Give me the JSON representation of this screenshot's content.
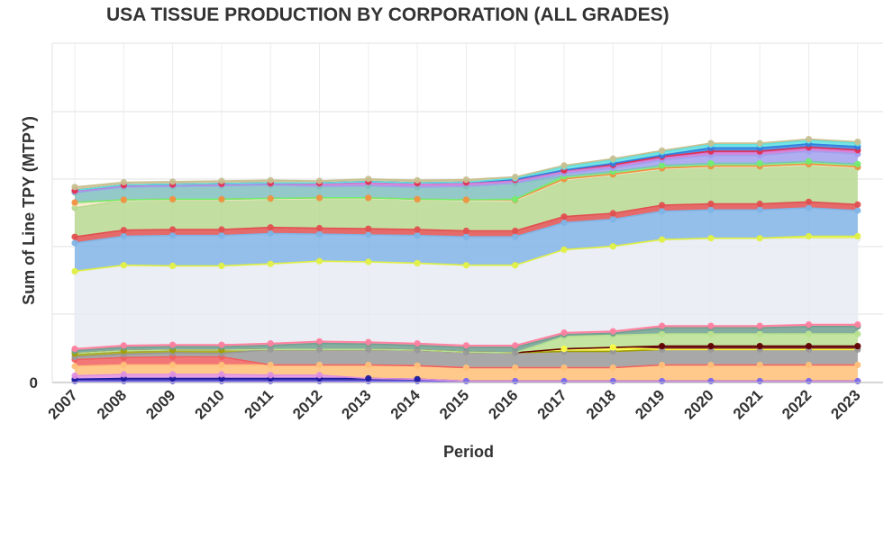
{
  "chart_data": {
    "type": "area",
    "stacked": true,
    "title": "USA TISSUE PRODUCTION BY CORPORATION (ALL GRADES)",
    "xlabel": "Period",
    "ylabel": "Sum of Line TPY (MTPY)",
    "ytick_labels": [
      "0"
    ],
    "x": [
      "2007",
      "2008",
      "2009",
      "2010",
      "2011",
      "2012",
      "2013",
      "2014",
      "2015",
      "2016",
      "2017",
      "2018",
      "2019",
      "2020",
      "2021",
      "2022",
      "2023"
    ],
    "grid": true,
    "legend": "none",
    "series": [
      {
        "color": "#7b68ee",
        "values": [
          2,
          2,
          2,
          2,
          2,
          2,
          2,
          2,
          2,
          2,
          2,
          2,
          2,
          2,
          2,
          2,
          2
        ]
      },
      {
        "color": "#1a1aa0",
        "values": [
          3,
          4,
          4,
          4,
          4,
          4,
          4,
          3,
          0,
          0,
          0,
          0,
          0,
          0,
          0,
          0,
          0
        ]
      },
      {
        "color": "#e090e0",
        "values": [
          5,
          6,
          6,
          6,
          5,
          5,
          0,
          0,
          0,
          0,
          0,
          0,
          0,
          0,
          0,
          0,
          0
        ]
      },
      {
        "color": "#ffc078",
        "values": [
          14,
          14,
          14,
          14,
          15,
          15,
          20,
          20,
          20,
          20,
          20,
          20,
          24,
          24,
          24,
          24,
          24
        ]
      },
      {
        "color": "#f06060",
        "values": [
          10,
          11,
          12,
          12,
          0,
          0,
          0,
          0,
          0,
          0,
          0,
          0,
          0,
          0,
          0,
          0,
          0
        ]
      },
      {
        "color": "#999999",
        "values": [
          4,
          5,
          6,
          5,
          23,
          23,
          23,
          23,
          23,
          22,
          24,
          24,
          23,
          23,
          23,
          23,
          23
        ]
      },
      {
        "color": "#a0a000",
        "values": [
          5,
          5,
          4,
          5,
          0,
          0,
          0,
          0,
          0,
          0,
          0,
          0,
          0,
          0,
          0,
          0,
          0
        ]
      },
      {
        "color": "#ffff40",
        "values": [
          0,
          0,
          0,
          0,
          0,
          0,
          0,
          0,
          0,
          0,
          4,
          6,
          0,
          0,
          0,
          0,
          0
        ]
      },
      {
        "color": "#600000",
        "values": [
          0,
          0,
          0,
          0,
          0,
          0,
          0,
          0,
          0,
          0,
          0,
          0,
          5,
          5,
          5,
          5,
          5
        ]
      },
      {
        "color": "#b8e090",
        "values": [
          0,
          0,
          0,
          0,
          0,
          0,
          0,
          0,
          0,
          0,
          18,
          18,
          18,
          18,
          18,
          18,
          18
        ]
      },
      {
        "color": "#70a090",
        "values": [
          4,
          5,
          5,
          5,
          6,
          9,
          8,
          7,
          7,
          8,
          3,
          3,
          9,
          9,
          9,
          11,
          11
        ]
      },
      {
        "color": "#ff80a0",
        "values": [
          3,
          3,
          3,
          3,
          3,
          3,
          3,
          3,
          3,
          3,
          3,
          3,
          3,
          3,
          3,
          3,
          3
        ]
      },
      {
        "color": "#e8ecf3",
        "values": [
          114,
          118,
          116,
          116,
          117,
          118,
          118,
          118,
          118,
          118,
          122,
          125,
          126,
          128,
          128,
          127,
          127
        ]
      },
      {
        "color": "#e0f040",
        "values": [
          1,
          1,
          1,
          1,
          1,
          1,
          1,
          1,
          1,
          1,
          1,
          1,
          2,
          2,
          2,
          4,
          4
        ]
      },
      {
        "color": "#80b4e6",
        "values": [
          42,
          43,
          45,
          45,
          45,
          40,
          40,
          41,
          42,
          42,
          40,
          40,
          42,
          42,
          42,
          42,
          38
        ]
      },
      {
        "color": "#e05050",
        "values": [
          9,
          9,
          9,
          9,
          9,
          9,
          9,
          9,
          9,
          9,
          9,
          9,
          9,
          9,
          9,
          9,
          9
        ]
      },
      {
        "color": "#b8d890",
        "values": [
          43,
          44,
          44,
          44,
          42,
          44,
          45,
          44,
          45,
          45,
          55,
          57,
          54,
          55,
          55,
          55,
          55
        ]
      },
      {
        "color": "#f8e8c8",
        "values": [
          7,
          0,
          0,
          0,
          0,
          0,
          0,
          0,
          0,
          0,
          0,
          0,
          0,
          0,
          0,
          0,
          0
        ]
      },
      {
        "color": "#f09040",
        "values": [
          1,
          1,
          1,
          1,
          1,
          1,
          1,
          1,
          1,
          1,
          1,
          1,
          1,
          1,
          1,
          1,
          1
        ]
      },
      {
        "color": "#70ee70",
        "values": [
          0,
          0,
          0,
          0,
          0,
          0,
          0,
          0,
          0,
          1,
          4,
          4,
          4,
          4,
          4,
          4,
          4
        ]
      },
      {
        "color": "#80c0c0",
        "values": [
          15,
          19,
          19,
          20,
          20,
          17,
          18,
          18,
          20,
          24,
          0,
          0,
          0,
          0,
          0,
          0,
          0
        ]
      },
      {
        "color": "#a0a0ee",
        "values": [
          0,
          0,
          0,
          0,
          0,
          0,
          0,
          0,
          0,
          0,
          4,
          5,
          8,
          12,
          12,
          15,
          15
        ]
      },
      {
        "color": "#d070d0",
        "values": [
          2,
          2,
          2,
          2,
          2,
          4,
          5,
          5,
          5,
          4,
          4,
          4,
          4,
          5,
          5,
          5,
          5
        ]
      },
      {
        "color": "#e03050",
        "values": [
          1,
          1,
          1,
          1,
          1,
          1,
          1,
          1,
          1,
          1,
          1,
          1,
          1,
          1,
          1,
          1,
          1
        ]
      },
      {
        "color": "#3080e0",
        "values": [
          0,
          0,
          0,
          0,
          0,
          0,
          0,
          0,
          0,
          0,
          0,
          2,
          2,
          5,
          5,
          5,
          5
        ]
      },
      {
        "color": "#60e0e0",
        "values": [
          0,
          0,
          0,
          0,
          0,
          0,
          0,
          0,
          0,
          2,
          5,
          5,
          5,
          5,
          5,
          5,
          5
        ]
      },
      {
        "color": "#c8c090",
        "values": [
          5,
          4,
          4,
          4,
          4,
          3,
          4,
          4,
          4,
          2,
          2,
          2,
          2,
          2,
          2,
          2,
          2
        ]
      }
    ]
  }
}
